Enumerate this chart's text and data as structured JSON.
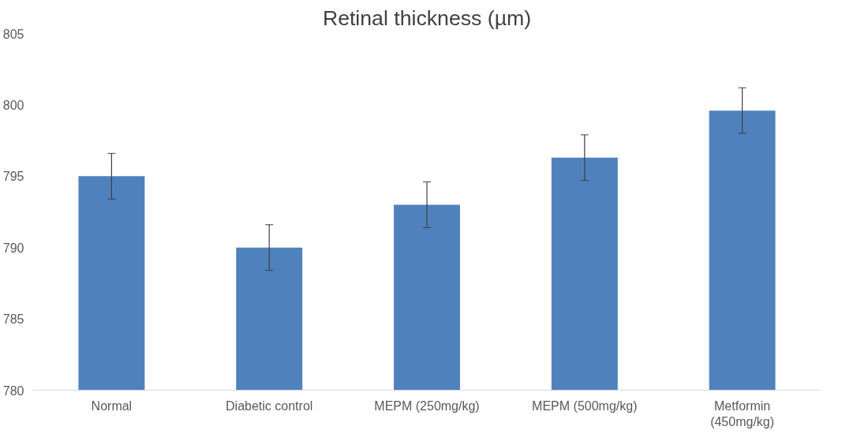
{
  "chart_data": {
    "type": "bar",
    "title": "Retinal thickness (µm)",
    "categories": [
      "Normal",
      "Diabetic control",
      "MEPM (250mg/kg)",
      "MEPM (500mg/kg)",
      "Metformin (450mg/kg)"
    ],
    "values": [
      795,
      790,
      793,
      796.3,
      799.6
    ],
    "errors": [
      1.6,
      1.6,
      1.6,
      1.6,
      1.6
    ],
    "color": "#4f81bd",
    "ylim": [
      780,
      805
    ],
    "yticks": [
      780,
      785,
      790,
      795,
      800,
      805
    ],
    "grid": false
  }
}
